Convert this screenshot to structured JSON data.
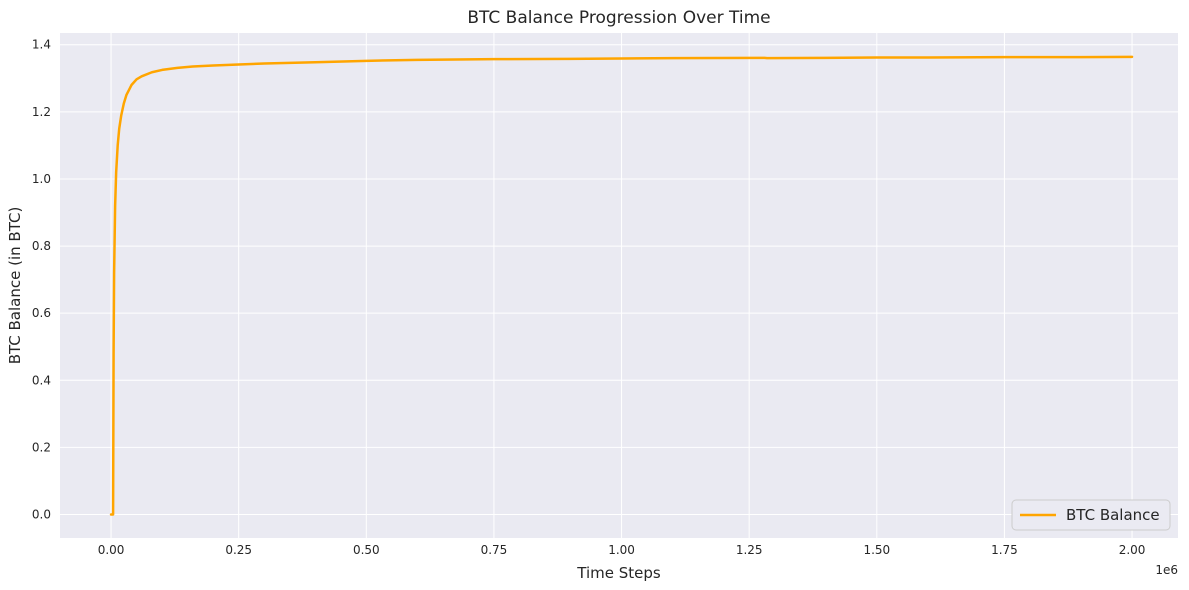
{
  "chart_data": {
    "type": "line",
    "title": "BTC Balance Progression Over Time",
    "xlabel": "Time Steps",
    "ylabel": "BTC Balance (in BTC)",
    "x_offset_label": "1e6",
    "xlim": [
      -0.1,
      2.09
    ],
    "ylim": [
      -0.07,
      1.435
    ],
    "x_ticks": [
      0.0,
      0.25,
      0.5,
      0.75,
      1.0,
      1.25,
      1.5,
      1.75,
      2.0
    ],
    "x_tick_labels": [
      "0.00",
      "0.25",
      "0.50",
      "0.75",
      "1.00",
      "1.25",
      "1.50",
      "1.75",
      "2.00"
    ],
    "y_ticks": [
      0.0,
      0.2,
      0.4,
      0.6,
      0.8,
      1.0,
      1.2,
      1.4
    ],
    "y_tick_labels": [
      "0.0",
      "0.2",
      "0.4",
      "0.6",
      "0.8",
      "1.0",
      "1.2",
      "1.4"
    ],
    "grid": true,
    "legend_position": "bottom-right",
    "series": [
      {
        "name": "BTC Balance",
        "color": "#FFA500",
        "x": [
          0.0,
          0.004,
          0.005,
          0.006,
          0.008,
          0.01,
          0.013,
          0.016,
          0.02,
          0.025,
          0.03,
          0.04,
          0.05,
          0.06,
          0.08,
          0.1,
          0.13,
          0.16,
          0.2,
          0.25,
          0.3,
          0.4,
          0.5,
          0.6,
          0.75,
          0.9,
          1.0,
          1.1,
          1.28,
          1.285,
          1.4,
          1.5,
          1.6,
          1.75,
          1.9,
          2.0
        ],
        "y": [
          0.0,
          0.0,
          0.48,
          0.72,
          0.92,
          1.02,
          1.1,
          1.15,
          1.19,
          1.225,
          1.25,
          1.28,
          1.297,
          1.306,
          1.318,
          1.325,
          1.331,
          1.335,
          1.338,
          1.341,
          1.344,
          1.348,
          1.352,
          1.355,
          1.357,
          1.358,
          1.359,
          1.36,
          1.361,
          1.36,
          1.361,
          1.362,
          1.362,
          1.363,
          1.363,
          1.364
        ]
      }
    ]
  }
}
